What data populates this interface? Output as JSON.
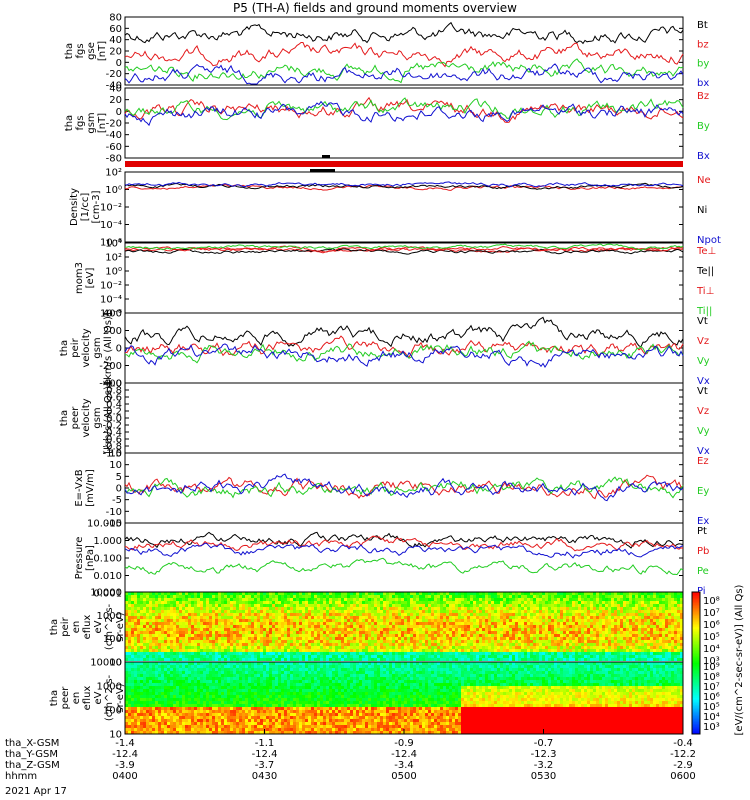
{
  "title": "P5 (TH-A) fields and ground moments overview",
  "colors": {
    "black": "#000000",
    "red": "#e41a1c",
    "green": "#22cc22",
    "blue": "#1010d0"
  },
  "chart_data": [
    {
      "id": "fgs_gse",
      "type": "line",
      "ylabel": [
        "tha",
        "fgs",
        "gse",
        "[nT]"
      ],
      "yticks": [
        80,
        60,
        40,
        20,
        0,
        -20,
        -40
      ],
      "ylim": [
        -45,
        90
      ],
      "series": [
        {
          "name": "Bt",
          "color": "black",
          "base": 45,
          "amp": 6
        },
        {
          "name": "bz",
          "color": "red",
          "base": 10,
          "amp": 10
        },
        {
          "name": "by",
          "color": "green",
          "base": -25,
          "amp": 8
        },
        {
          "name": "bx",
          "color": "blue",
          "base": -30,
          "amp": 6
        }
      ]
    },
    {
      "id": "fgs_gsm",
      "type": "line",
      "ylabel": [
        "tha",
        "fgs",
        "gsm",
        "[nT]"
      ],
      "yticks": [
        40,
        20,
        0,
        -20,
        -40,
        -60,
        -80
      ],
      "ylim": [
        -90,
        45
      ],
      "series": [
        {
          "name": "Bz",
          "color": "red",
          "base": -5,
          "amp": 8
        },
        {
          "name": "By",
          "color": "green",
          "base": -2,
          "amp": 8
        },
        {
          "name": "Bx",
          "color": "blue",
          "base": -10,
          "amp": 8
        }
      ]
    },
    {
      "id": "density",
      "type": "line",
      "log": true,
      "ylabel": [
        "Density",
        "[1/cc]",
        "[cm-3]"
      ],
      "yticks": [
        "10²",
        "10⁰",
        "10⁻²",
        "10⁻⁴",
        "10⁻⁶"
      ],
      "series": [
        {
          "name": "Ne",
          "color": "red"
        },
        {
          "name": "Ni",
          "color": "black"
        },
        {
          "name": "Npot",
          "color": "blue"
        }
      ]
    },
    {
      "id": "temp",
      "type": "line",
      "log": true,
      "ylabel": [
        "mom3",
        "[eV]"
      ],
      "yticks": [
        "10⁴",
        "10²",
        "10⁰",
        "10⁻²",
        "10⁻⁴",
        "10⁻⁶"
      ],
      "series": [
        {
          "name": "Te⊥",
          "color": "red"
        },
        {
          "name": "Te||",
          "color": "black"
        },
        {
          "name": "Ti⊥",
          "color": "red"
        },
        {
          "name": "Ti||",
          "color": "green"
        }
      ]
    },
    {
      "id": "peir_vel",
      "type": "line",
      "ylabel": [
        "tha",
        "peir",
        "velocity",
        "gsm",
        "[km/s (All Qs)]"
      ],
      "yticks": [
        400,
        200,
        0,
        -200,
        -400
      ],
      "ylim": [
        -400,
        400
      ],
      "series": [
        {
          "name": "Vt",
          "color": "black"
        },
        {
          "name": "Vz",
          "color": "red"
        },
        {
          "name": "Vy",
          "color": "green"
        },
        {
          "name": "Vx",
          "color": "blue"
        }
      ]
    },
    {
      "id": "peer_vel",
      "type": "line",
      "ylabel": [
        "tha",
        "peer",
        "velocity",
        "gsm",
        "[km/s (All Qs)]"
      ],
      "yticks": [
        "1.0",
        "0.8",
        "0.6",
        "0.4",
        "0.2",
        "0.0",
        "-0.2",
        "-0.4",
        "-0.6",
        "-0.8",
        "-1.0"
      ],
      "ylim": [
        -1,
        1
      ],
      "series": [
        {
          "name": "Vt",
          "color": "black"
        },
        {
          "name": "Vz",
          "color": "red"
        },
        {
          "name": "Vy",
          "color": "green"
        },
        {
          "name": "Vx",
          "color": "blue"
        }
      ]
    },
    {
      "id": "efield",
      "type": "line",
      "ylabel": [
        "E=-VxB",
        "[mV/m]"
      ],
      "yticks": [
        15,
        10,
        5,
        0,
        -5,
        -10,
        -15
      ],
      "ylim": [
        -15,
        15
      ],
      "series": [
        {
          "name": "Ez",
          "color": "red"
        },
        {
          "name": "Ey",
          "color": "green"
        },
        {
          "name": "Ex",
          "color": "blue"
        }
      ]
    },
    {
      "id": "pressure",
      "type": "line",
      "log": true,
      "ylabel": [
        "Pressure",
        "[nPa]"
      ],
      "yticks": [
        "10.000",
        "1.000",
        "0.100",
        "0.010",
        "0.001"
      ],
      "series": [
        {
          "name": "Pt",
          "color": "black"
        },
        {
          "name": "Pb",
          "color": "red"
        },
        {
          "name": "Pe",
          "color": "green"
        },
        {
          "name": "Pi",
          "color": "blue"
        }
      ]
    },
    {
      "id": "peir_eflux",
      "type": "heatmap",
      "ylabel": [
        "tha",
        "peir",
        "en",
        "eflux",
        "eV",
        "(cm^2-s-",
        "sr-eV)"
      ],
      "yticks": [
        "10000",
        "1000",
        "100",
        "10"
      ]
    },
    {
      "id": "peer_eflux",
      "type": "heatmap",
      "ylabel": [
        "tha",
        "peer",
        "en",
        "eflux",
        "eV",
        "(cm^2-s-",
        "sr-eV)"
      ],
      "yticks": [
        "10000",
        "1000",
        "100",
        "10"
      ]
    }
  ],
  "colorbar": {
    "ticks": [
      "10⁸",
      "10⁷",
      "10⁶",
      "10⁵",
      "10⁴",
      "10³"
    ],
    "ticks2": [
      "10⁹",
      "10⁸",
      "10⁷",
      "10⁶",
      "10⁵",
      "10⁴",
      "10³"
    ],
    "label": "[eV/(cm^2-sec-sr-eV)] (All Qs)"
  },
  "xaxis": {
    "rows": [
      {
        "label": "tha_X-GSM",
        "values": [
          "-1.4",
          "-1.1",
          "-0.9",
          "-0.7",
          "-0.4"
        ]
      },
      {
        "label": "tha_Y-GSM",
        "values": [
          "-12.4",
          "-12.4",
          "-12.4",
          "-12.3",
          "-12.2"
        ]
      },
      {
        "label": "tha_Z-GSM",
        "values": [
          "-3.9",
          "-3.7",
          "-3.4",
          "-3.2",
          "-2.9"
        ]
      },
      {
        "label": "hhmm",
        "values": [
          "0400",
          "0430",
          "0500",
          "0530",
          "0600"
        ]
      }
    ],
    "date": "2021 Apr 17"
  }
}
